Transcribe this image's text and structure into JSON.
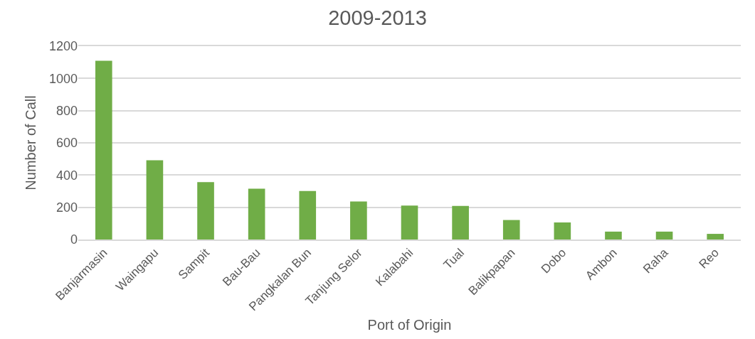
{
  "chart_data": {
    "type": "bar",
    "title": "2009-2013",
    "xlabel": "Port of Origin",
    "ylabel": "Number of Call",
    "categories": [
      "Banjarmasin",
      "Waingapu",
      "Sampit",
      "Bau-Bau",
      "Pangkalan Bun",
      "Tanjung Selor",
      "Kalabahi",
      "Tual",
      "Balikpapan",
      "Dobo",
      "Ambon",
      "Raha",
      "Reo"
    ],
    "values": [
      1110,
      492,
      356,
      315,
      301,
      236,
      211,
      209,
      121,
      106,
      49,
      49,
      35
    ],
    "color": "#70ad47",
    "ylim": [
      0,
      1200
    ],
    "yticks": [
      0,
      200,
      400,
      600,
      800,
      1000,
      1200
    ],
    "grid": "y"
  }
}
